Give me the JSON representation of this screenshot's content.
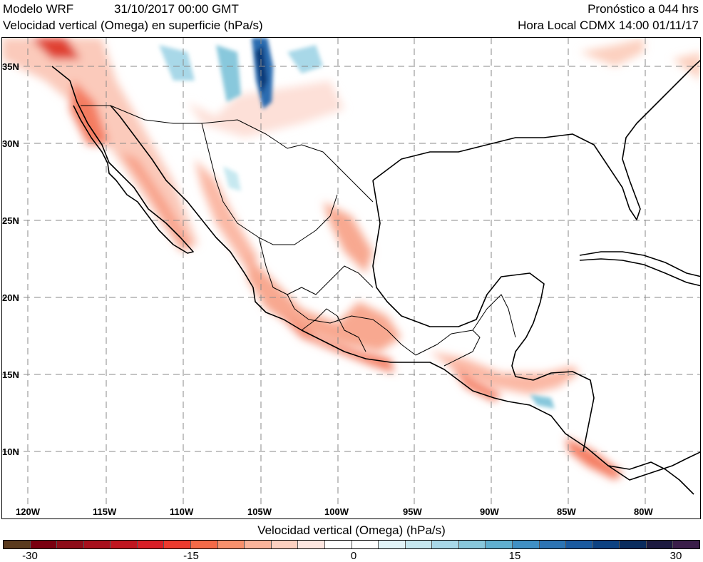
{
  "header": {
    "model": "Modelo WRF",
    "init_time": "31/10/2017 00:00 GMT",
    "variable": "Velocidad vertical (Omega) en superficie (hPa/s)",
    "forecast": "Pronóstico a 044 hrs",
    "local_time": "Hora Local CDMX 14:00 01/11/17"
  },
  "map": {
    "lon_labels": [
      "120W",
      "115W",
      "110W",
      "105W",
      "100W",
      "95W",
      "90W",
      "85W",
      "80W"
    ],
    "lat_labels": [
      "35N",
      "30N",
      "25N",
      "20N",
      "15N",
      "10N"
    ],
    "grid": "dashed",
    "coastline_color": "#000000"
  },
  "colorbar": {
    "title": "Velocidad vertical (Omega) (hPa/s)",
    "tick_labels": [
      "-30",
      "-15",
      "0",
      "15",
      "30"
    ],
    "colors": [
      "#5a3a1e",
      "#7a0010",
      "#8e0c18",
      "#a8101c",
      "#c01620",
      "#d81e26",
      "#ec3a2e",
      "#f46a48",
      "#f8906c",
      "#fbb39a",
      "#fcd0c0",
      "#fde6e0",
      "#ffffff",
      "#ffffff",
      "#e2f4f8",
      "#c6e8f0",
      "#a8d8e8",
      "#88c8dc",
      "#60b0d0",
      "#4090c4",
      "#2c74b4",
      "#1a5aa0",
      "#0e4282",
      "#0a2c5e",
      "#1c1a40",
      "#3a1e4a"
    ]
  }
}
